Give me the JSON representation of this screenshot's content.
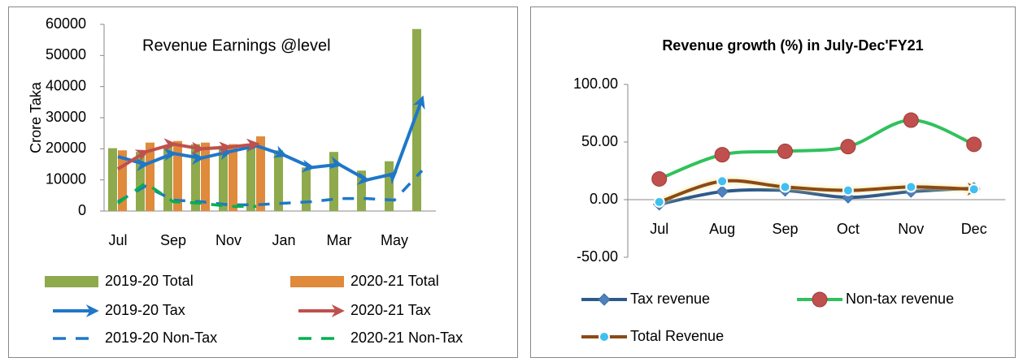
{
  "chart_data": [
    {
      "type": "bar",
      "title": "Revenue Earnings @level",
      "y_label": "Crore Taka",
      "categories": [
        "Jul",
        null,
        "Sep",
        null,
        "Nov",
        null,
        "Jan",
        null,
        "Mar",
        null,
        "May",
        null
      ],
      "ylim": [
        0,
        60000
      ],
      "yticks": [
        0,
        10000,
        20000,
        30000,
        40000,
        50000,
        60000
      ],
      "series": [
        {
          "name": "2019-20 Total",
          "kind": "bar",
          "color": "#8faa4c",
          "values": [
            20200,
            19000,
            21000,
            21500,
            21000,
            21000,
            19500,
            14000,
            19000,
            13000,
            16000,
            58500
          ]
        },
        {
          "name": "2020-21 Total",
          "kind": "bar",
          "color": "#e08a3c",
          "values": [
            19500,
            22000,
            22500,
            22000,
            21500,
            24000,
            null,
            null,
            null,
            null,
            null,
            null
          ]
        },
        {
          "name": "2019-20 Tax",
          "kind": "arrow",
          "color": "#1f77c8",
          "values": [
            17500,
            15000,
            18500,
            17000,
            19000,
            21000,
            18000,
            14000,
            15000,
            10000,
            12000,
            36000
          ]
        },
        {
          "name": "2020-21 Tax",
          "kind": "arrow",
          "color": "#c0504d",
          "values": [
            13500,
            19000,
            21500,
            20000,
            20500,
            21500,
            null,
            null,
            null,
            null,
            null,
            null
          ]
        },
        {
          "name": "2019-20 Non-Tax",
          "kind": "dashed",
          "color": "#1f77c8",
          "values": [
            3000,
            8000,
            3500,
            3000,
            2000,
            2000,
            2500,
            3000,
            4000,
            4000,
            3500,
            13000
          ]
        },
        {
          "name": "2020-21 Non-Tax",
          "kind": "dashed",
          "color": "#00b050",
          "values": [
            2500,
            9000,
            3000,
            2500,
            1500,
            1500,
            null,
            null,
            null,
            null,
            null,
            null
          ]
        }
      ]
    },
    {
      "type": "line",
      "title": "Revenue growth (%) in  July-Dec'FY21",
      "categories": [
        "Jul",
        "Aug",
        "Sep",
        "Oct",
        "Nov",
        "Dec"
      ],
      "ylim": [
        -50,
        100
      ],
      "yticks": [
        {
          "value": -50,
          "label": "-50.00"
        },
        {
          "value": 0,
          "label": "0.00"
        },
        {
          "value": 50,
          "label": "50.00"
        },
        {
          "value": 100,
          "label": "100.00"
        }
      ],
      "series": [
        {
          "name": "Tax revenue",
          "color": "#2e5a8a",
          "marker": "diamond",
          "marker_color": "#4f81bd",
          "values": [
            -4,
            7,
            8,
            2,
            7,
            10
          ]
        },
        {
          "name": "Non-tax revenue",
          "color": "#2fc25b",
          "marker": "circle",
          "marker_color": "#c0504d",
          "values": [
            18,
            39,
            42,
            46,
            69,
            48
          ]
        },
        {
          "name": "Total Revenue",
          "color": "#8b4a13",
          "marker": "circle",
          "marker_color": "#3fc0f0",
          "values": [
            -2,
            16,
            11,
            8,
            11,
            9
          ]
        }
      ]
    }
  ]
}
